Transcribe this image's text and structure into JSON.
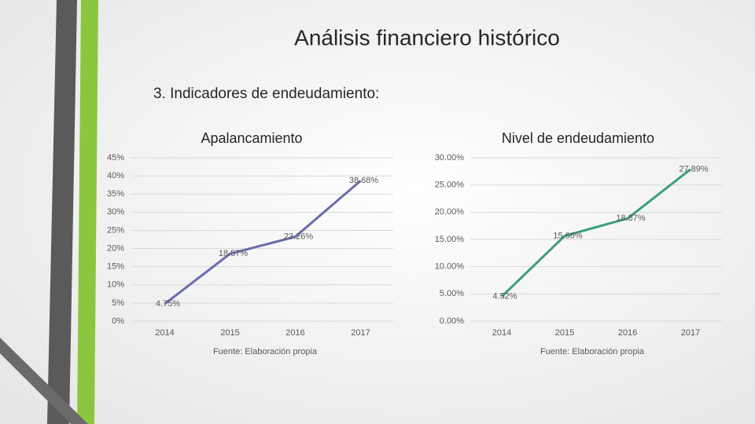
{
  "title": "Análisis financiero histórico",
  "subtitle": "3. Indicadores de endeudamiento:",
  "chart_data": [
    {
      "type": "line",
      "title": "Apalancamiento",
      "categories": [
        "2014",
        "2015",
        "2016",
        "2017"
      ],
      "values": [
        4.75,
        18.57,
        23.26,
        38.68
      ],
      "value_labels": [
        "4.75%",
        "18.57%",
        "23.26%",
        "38.68%"
      ],
      "color": "#6b6bb0",
      "ylim": [
        0,
        45
      ],
      "yticks": [
        {
          "value": 0,
          "label": "0%"
        },
        {
          "value": 5,
          "label": "5%"
        },
        {
          "value": 10,
          "label": "10%"
        },
        {
          "value": 15,
          "label": "15%"
        },
        {
          "value": 20,
          "label": "20%"
        },
        {
          "value": 25,
          "label": "25%"
        },
        {
          "value": 30,
          "label": "30%"
        },
        {
          "value": 35,
          "label": "35%"
        },
        {
          "value": 40,
          "label": "40%"
        },
        {
          "value": 45,
          "label": "45%"
        }
      ],
      "grid": true,
      "source": "Fuente: Elaboración propia"
    },
    {
      "type": "line",
      "title": "Nivel de endeudamiento",
      "categories": [
        "2014",
        "2015",
        "2016",
        "2017"
      ],
      "values": [
        4.52,
        15.66,
        18.87,
        27.89
      ],
      "value_labels": [
        "4.52%",
        "15.66%",
        "18.87%",
        "27.89%"
      ],
      "color": "#3a9e7e",
      "ylim": [
        0,
        30
      ],
      "yticks": [
        {
          "value": 0,
          "label": "0.00%"
        },
        {
          "value": 5,
          "label": "5.00%"
        },
        {
          "value": 10,
          "label": "10.00%"
        },
        {
          "value": 15,
          "label": "15.00%"
        },
        {
          "value": 20,
          "label": "20.00%"
        },
        {
          "value": 25,
          "label": "25.00%"
        },
        {
          "value": 30,
          "label": "30.00%"
        }
      ],
      "grid": true,
      "source": "Fuente: Elaboración propia"
    }
  ]
}
